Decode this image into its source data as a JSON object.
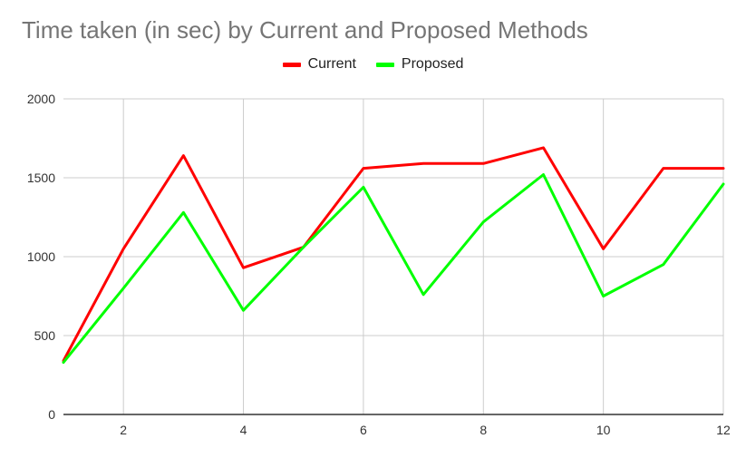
{
  "chart_data": {
    "type": "line",
    "title": "Time taken (in sec) by Current and Proposed Methods",
    "xlabel": "",
    "ylabel": "",
    "x": [
      1,
      2,
      3,
      4,
      5,
      6,
      7,
      8,
      9,
      10,
      11,
      12
    ],
    "xlim": [
      1,
      12
    ],
    "ylim": [
      0,
      2000
    ],
    "x_ticks": [
      "2",
      "4",
      "6",
      "8",
      "10",
      "12"
    ],
    "y_ticks": [
      "0",
      "500",
      "1000",
      "1500",
      "2000"
    ],
    "grid": true,
    "legend_position": "top",
    "series": [
      {
        "name": "Current",
        "color": "#ff0000",
        "values": [
          340,
          1050,
          1640,
          930,
          1060,
          1560,
          1590,
          1590,
          1690,
          1050,
          1560,
          1560
        ]
      },
      {
        "name": "Proposed",
        "color": "#00ff00",
        "values": [
          330,
          800,
          1280,
          660,
          1060,
          1440,
          760,
          1220,
          1520,
          750,
          950,
          1460
        ]
      }
    ]
  }
}
